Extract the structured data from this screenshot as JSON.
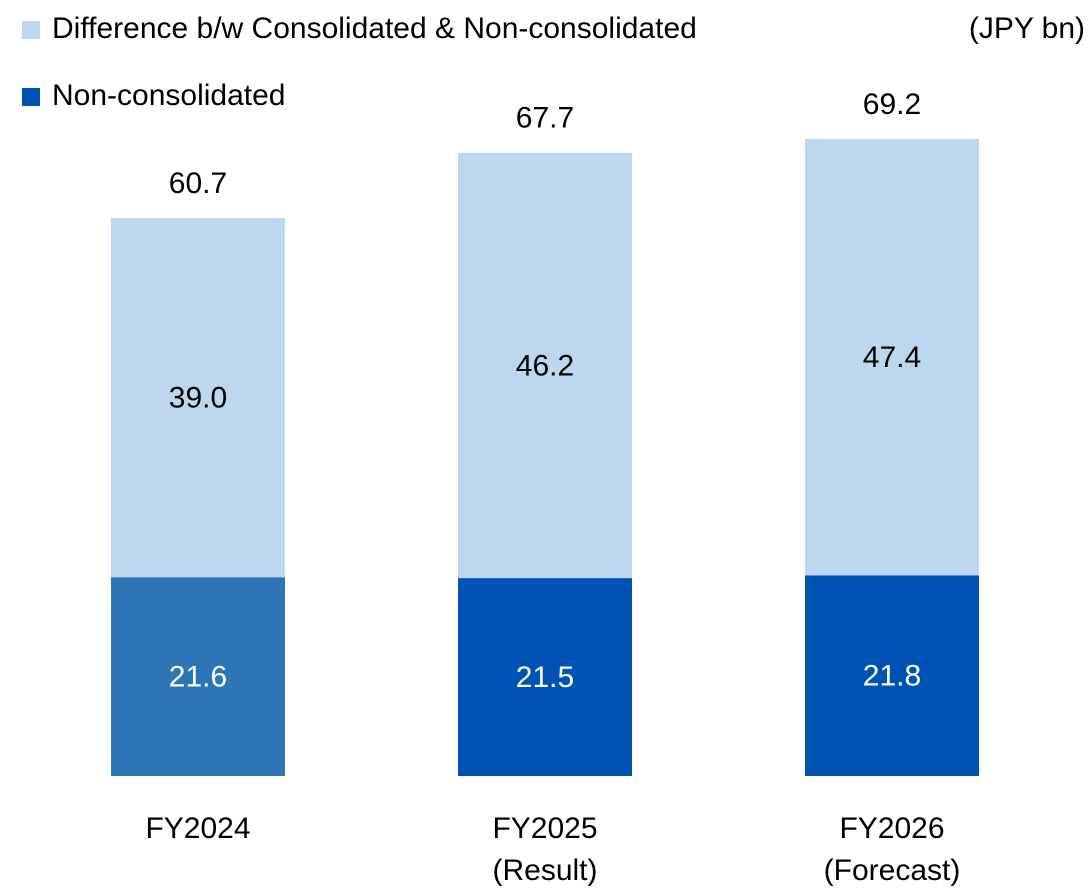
{
  "chart_data": {
    "type": "stacked_bar",
    "unit": "(JPY bn)",
    "categories": [
      "FY2024",
      "FY2025\n(Result)",
      "FY2026\n(Forecast)"
    ],
    "series": [
      {
        "name": "Non-consolidated",
        "color": "#0052b4",
        "colors": [
          "#2e75b6",
          "#0052b4",
          "#0052b4"
        ],
        "label_color": "#ffffff",
        "values": [
          21.6,
          21.5,
          21.8
        ]
      },
      {
        "name": "Difference b/w Consolidated & Non-consolidated",
        "color": "#bdd7ee",
        "colors": [
          "#bdd7ee",
          "#bdd7ee",
          "#bdd7ee"
        ],
        "label_color": "#000000",
        "values": [
          39.0,
          46.2,
          47.4
        ],
        "value_labels": [
          "39.0",
          "46.2",
          "47.4"
        ]
      }
    ],
    "totals": [
      60.7,
      67.7,
      69.2
    ],
    "legend": "top-left"
  }
}
